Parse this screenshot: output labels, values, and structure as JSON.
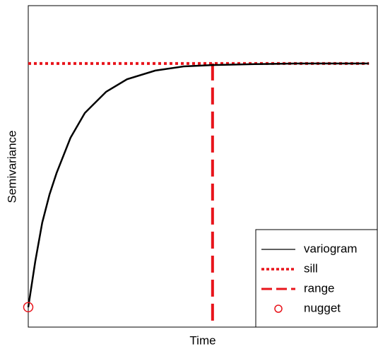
{
  "chart_data": {
    "type": "line",
    "xlabel": "Time",
    "ylabel": "Semivariance",
    "xlim": [
      0,
      100
    ],
    "ylim": [
      0,
      100
    ],
    "x": [
      0,
      2.0,
      4.0,
      6.1,
      8.1,
      12.1,
      16.2,
      22.3,
      28.3,
      36.4,
      44.5,
      52.6,
      64.8,
      76.9,
      97.6
    ],
    "series": [
      {
        "name": "variogram",
        "color": "#000000",
        "values": [
          6.2,
          20.4,
          32.5,
          41.3,
          47.9,
          58.9,
          66.6,
          73.2,
          77.1,
          79.8,
          81.1,
          81.5,
          81.8,
          82.0,
          82.0
        ]
      }
    ],
    "sill": {
      "name": "sill",
      "color": "#e8141b",
      "value": 82.0
    },
    "range": {
      "name": "range",
      "color": "#e8141b",
      "value": 52.8
    },
    "nugget": {
      "name": "nugget",
      "color": "#e8141b",
      "x": 0,
      "value": 6.2
    },
    "legend": "bottomright"
  }
}
